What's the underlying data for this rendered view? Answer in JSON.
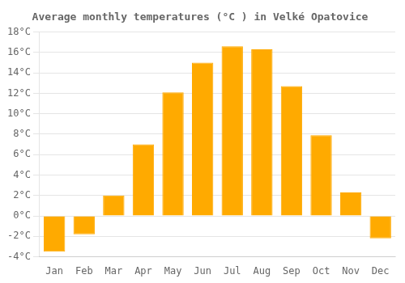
{
  "chart_data": {
    "type": "bar",
    "title": "Average monthly temperatures (°C ) in Velké Opatovice",
    "categories": [
      "Jan",
      "Feb",
      "Mar",
      "Apr",
      "May",
      "Jun",
      "Jul",
      "Aug",
      "Sep",
      "Oct",
      "Nov",
      "Dec"
    ],
    "values": [
      -3.5,
      -1.8,
      2.0,
      7.0,
      12.1,
      15.0,
      16.6,
      16.3,
      12.7,
      7.9,
      2.3,
      -2.2
    ],
    "color": "#FFAA00",
    "ylim": [
      -4,
      18
    ],
    "yticks": [
      {
        "value": -4,
        "label": "-4°C"
      },
      {
        "value": -2,
        "label": "-2°C"
      },
      {
        "value": 0,
        "label": "0°C"
      },
      {
        "value": 2,
        "label": "2°C"
      },
      {
        "value": 4,
        "label": "4°C"
      },
      {
        "value": 6,
        "label": "6°C"
      },
      {
        "value": 8,
        "label": "8°C"
      },
      {
        "value": 10,
        "label": "10°C"
      },
      {
        "value": 12,
        "label": "12°C"
      },
      {
        "value": 14,
        "label": "14°C"
      },
      {
        "value": 16,
        "label": "16°C"
      },
      {
        "value": 18,
        "label": "18°C"
      }
    ],
    "grid": "y"
  }
}
